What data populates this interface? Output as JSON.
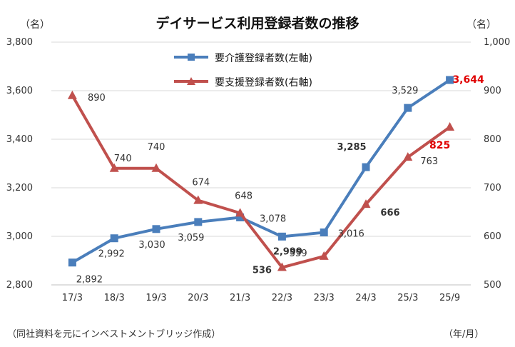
{
  "chart_data": {
    "type": "line",
    "title": "デイサービス利用登録者数の推移",
    "y_left_unit": "（名）",
    "y_right_unit": "（名）",
    "x_unit": "（年/月）",
    "source_note": "（同社資料を元にインベストメントブリッジ作成）",
    "categories": [
      "17/3",
      "18/3",
      "19/3",
      "20/3",
      "21/3",
      "22/3",
      "23/3",
      "24/3",
      "25/3",
      "25/9"
    ],
    "y_left": {
      "min": 2800,
      "max": 3800,
      "ticks": [
        "2,800",
        "3,000",
        "3,200",
        "3,400",
        "3,600",
        "3,800"
      ]
    },
    "y_right": {
      "min": 500,
      "max": 1000,
      "ticks": [
        "500",
        "600",
        "700",
        "800",
        "900",
        "1,000"
      ]
    },
    "series": [
      {
        "name": "要介護登録者数(左軸)",
        "axis": "left",
        "color": "#4a7ebb",
        "marker": "square",
        "values": [
          2892,
          2992,
          3030,
          3059,
          3078,
          2999,
          3016,
          3285,
          3529,
          3644
        ],
        "labels": [
          "2,892",
          "2,992",
          "3,030",
          "3,059",
          "3,078",
          "2,999",
          "3,016",
          "3,285",
          "3,529",
          "3,644"
        ]
      },
      {
        "name": "要支援登録者数(右軸)",
        "axis": "right",
        "color": "#c0504d",
        "marker": "triangle",
        "values": [
          890,
          740,
          740,
          674,
          648,
          536,
          559,
          666,
          763,
          825
        ],
        "labels": [
          "890",
          "740",
          "740",
          "674",
          "648",
          "536",
          "559",
          "666",
          "763",
          "825"
        ]
      }
    ],
    "highlight_color": "#e00000"
  }
}
